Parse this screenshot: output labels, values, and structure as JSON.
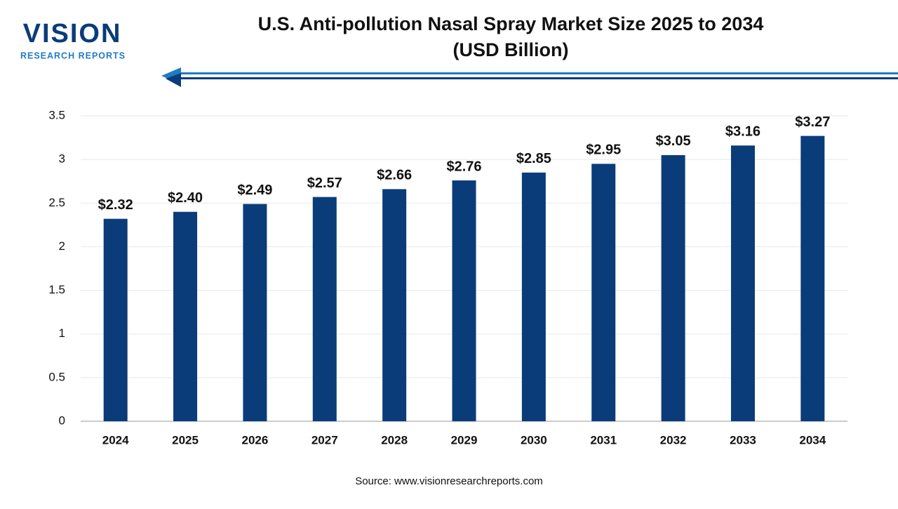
{
  "logo": {
    "name": "VISION",
    "tagline": "RESEARCH REPORTS"
  },
  "chart_data": {
    "type": "bar",
    "title": "U.S. Anti-pollution Nasal Spray Market Size 2025 to 2034",
    "subtitle": "(USD Billion)",
    "categories": [
      "2024",
      "2025",
      "2026",
      "2027",
      "2028",
      "2029",
      "2030",
      "2031",
      "2032",
      "2033",
      "2034"
    ],
    "values": [
      2.32,
      2.4,
      2.49,
      2.57,
      2.66,
      2.76,
      2.85,
      2.95,
      3.05,
      3.16,
      3.27
    ],
    "value_labels": [
      "$2.32",
      "$2.40",
      "$2.49",
      "$2.57",
      "$2.66",
      "$2.76",
      "$2.85",
      "$2.95",
      "$3.05",
      "$3.16",
      "$3.27"
    ],
    "color": "#0a3c7a",
    "ylim": [
      0,
      3.5
    ],
    "yticks": [
      0,
      0.5,
      1,
      1.5,
      2,
      2.5,
      3,
      3.5
    ],
    "grid": true,
    "source": "Source: www.visionresearchreports.com"
  }
}
